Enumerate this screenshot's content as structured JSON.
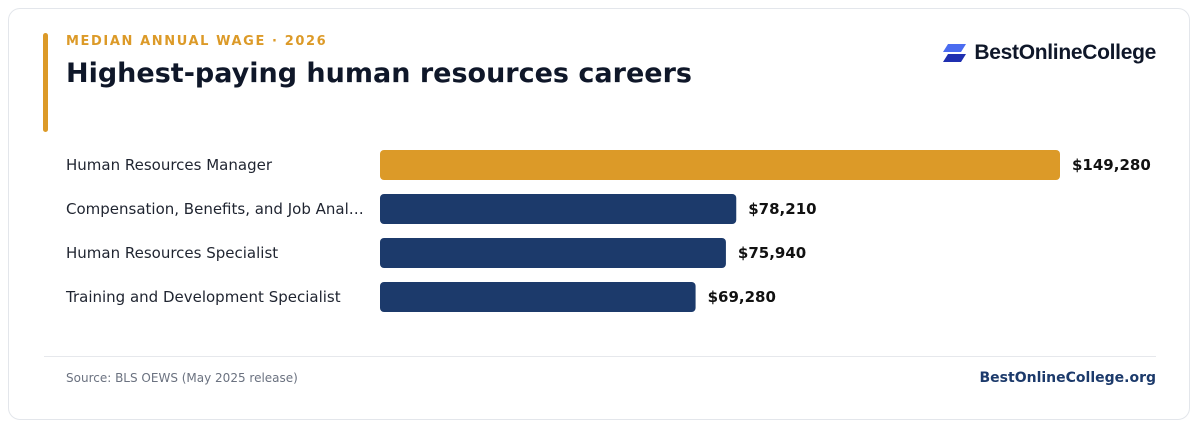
{
  "header": {
    "eyebrow": "MEDIAN ANNUAL WAGE · 2026",
    "title": "Highest-paying human resources careers"
  },
  "brand": {
    "name": "BestOnlineCollege",
    "logo_icon": "stacked-parallelogram-logo-icon"
  },
  "colors": {
    "accent": "#dc9a28",
    "primary_bar": "#1c3a6b",
    "logo_light": "#4b6cf0",
    "logo_dark": "#1f2fb0"
  },
  "chart_data": {
    "type": "bar",
    "orientation": "horizontal",
    "title": "Highest-paying human resources careers",
    "categories": [
      "Human Resources Manager",
      "Compensation, Benefits, and Job Anal…",
      "Human Resources Specialist",
      "Training and Development Specialist"
    ],
    "values": [
      149280,
      78210,
      75940,
      69280
    ],
    "value_labels": [
      "$149,280",
      "$78,210",
      "$75,940",
      "$69,280"
    ],
    "highlight_index": 0,
    "xlim": [
      0,
      149280
    ],
    "grid": false,
    "legend": "none"
  },
  "footer": {
    "source": "Source: BLS OEWS (May 2025 release)",
    "site": "BestOnlineCollege.org"
  }
}
